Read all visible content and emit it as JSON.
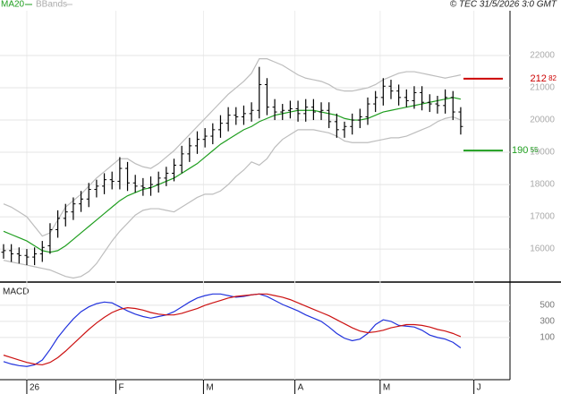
{
  "chart_data": [
    {
      "type": "ohlc",
      "source": "© TEC 31/5/2026 3:0 GMT",
      "categories": [
        null,
        null,
        null,
        null,
        null,
        null,
        null,
        null,
        null,
        null,
        null,
        null,
        null,
        null,
        null,
        null,
        null,
        null,
        null,
        null,
        null,
        null,
        null,
        null,
        null,
        null,
        null,
        null,
        null,
        null,
        null,
        null,
        null,
        null,
        null,
        null,
        null,
        null,
        null,
        null,
        null,
        null,
        null,
        null,
        null,
        null,
        null,
        null,
        null,
        null,
        null,
        null,
        null,
        null,
        null,
        null,
        null,
        null,
        null,
        null
      ],
      "ohlc": {
        "color": "#000000",
        "open": [
          15900,
          15950,
          15850,
          15800,
          15750,
          15850,
          16100,
          16600,
          16950,
          17150,
          17400,
          17550,
          17850,
          17950,
          18150,
          18100,
          18500,
          18050,
          17950,
          17900,
          18000,
          18200,
          18350,
          18600,
          18950,
          19200,
          19400,
          19500,
          19700,
          19900,
          20150,
          20100,
          20200,
          20300,
          21100,
          20400,
          20250,
          20300,
          20350,
          20200,
          20400,
          20250,
          20300,
          19950,
          19700,
          19800,
          20000,
          20100,
          20500,
          20700,
          21050,
          20900,
          20700,
          20600,
          20850,
          20550,
          20500,
          20450,
          20700,
          20250
        ],
        "high": [
          16150,
          16150,
          16050,
          16000,
          16050,
          16250,
          16800,
          17200,
          17400,
          17600,
          17800,
          18050,
          18150,
          18350,
          18400,
          18850,
          18700,
          18300,
          18200,
          18250,
          18400,
          18550,
          18800,
          19200,
          19450,
          19650,
          19750,
          19900,
          20150,
          20400,
          20400,
          20450,
          20550,
          21650,
          21300,
          20650,
          20500,
          20600,
          20600,
          20650,
          20650,
          20550,
          20550,
          20200,
          19950,
          20200,
          20350,
          20700,
          20900,
          21300,
          21250,
          21100,
          20950,
          21050,
          21050,
          20800,
          20750,
          20950,
          20900,
          20400
        ],
        "low": [
          15700,
          15600,
          15550,
          15500,
          15500,
          15600,
          15850,
          16350,
          16700,
          16900,
          17150,
          17300,
          17600,
          17700,
          17850,
          17850,
          17800,
          17750,
          17650,
          17650,
          17750,
          17950,
          18100,
          18350,
          18700,
          18950,
          19150,
          19250,
          19450,
          19650,
          19850,
          19850,
          19950,
          20050,
          20150,
          20000,
          20000,
          20050,
          19950,
          19950,
          20000,
          20000,
          19750,
          19450,
          19450,
          19550,
          19750,
          19850,
          20250,
          20450,
          20650,
          20450,
          20400,
          20350,
          20300,
          20250,
          20200,
          20200,
          20000,
          19550
        ],
        "close": [
          15950,
          15850,
          15800,
          15750,
          15850,
          16050,
          16600,
          16950,
          17150,
          17400,
          17550,
          17850,
          17950,
          18150,
          18100,
          18500,
          18050,
          17950,
          17900,
          18000,
          18200,
          18350,
          18600,
          18950,
          19200,
          19400,
          19500,
          19700,
          19900,
          20150,
          20100,
          20200,
          20300,
          21100,
          20400,
          20250,
          20300,
          20350,
          20200,
          20400,
          20250,
          20300,
          19950,
          19700,
          19800,
          20000,
          20100,
          20500,
          20700,
          21050,
          20900,
          20700,
          20600,
          20850,
          20550,
          20500,
          20450,
          20700,
          20250,
          19800
        ]
      },
      "series": [
        {
          "name": "MA20",
          "color": "#1f9e1f",
          "values": [
            16550,
            16450,
            16350,
            16250,
            16100,
            15950,
            15900,
            15950,
            16100,
            16300,
            16500,
            16700,
            16900,
            17100,
            17300,
            17500,
            17650,
            17750,
            17850,
            17900,
            18000,
            18100,
            18200,
            18350,
            18500,
            18650,
            18850,
            19050,
            19250,
            19400,
            19550,
            19700,
            19800,
            19950,
            20050,
            20150,
            20200,
            20250,
            20300,
            20300,
            20300,
            20250,
            20200,
            20150,
            20050,
            20000,
            20000,
            20050,
            20150,
            20250,
            20300,
            20350,
            20400,
            20450,
            20500,
            20550,
            20600,
            20650,
            20700,
            20650
          ]
        },
        {
          "name": "BBands",
          "color": "#bdbdbd",
          "upper": [
            17400,
            17300,
            17150,
            17000,
            16700,
            16400,
            16500,
            16900,
            17300,
            17500,
            17700,
            17950,
            18200,
            18400,
            18600,
            18800,
            18800,
            18650,
            18550,
            18500,
            18650,
            18850,
            19050,
            19300,
            19550,
            19800,
            20050,
            20300,
            20550,
            20800,
            21000,
            21200,
            21450,
            21900,
            21900,
            21800,
            21700,
            21550,
            21400,
            21300,
            21250,
            21200,
            21100,
            20950,
            20900,
            20900,
            20950,
            21000,
            21100,
            21250,
            21350,
            21450,
            21500,
            21500,
            21450,
            21400,
            21350,
            21300,
            21350,
            21400
          ],
          "lower": [
            15650,
            15600,
            15550,
            15500,
            15450,
            15400,
            15350,
            15250,
            15150,
            15100,
            15150,
            15300,
            15550,
            15900,
            16250,
            16550,
            16800,
            17050,
            17200,
            17250,
            17250,
            17200,
            17150,
            17300,
            17450,
            17600,
            17700,
            17700,
            17800,
            18000,
            18250,
            18450,
            18700,
            18600,
            18800,
            19150,
            19400,
            19550,
            19700,
            19700,
            19700,
            19650,
            19600,
            19500,
            19350,
            19300,
            19300,
            19300,
            19350,
            19400,
            19450,
            19450,
            19500,
            19600,
            19700,
            19800,
            19950,
            20050,
            20100,
            20000
          ]
        }
      ],
      "annotations": [
        {
          "value": 21282,
          "label": "212 82",
          "color": "#cc0000"
        },
        {
          "value": 19055,
          "label": "190 55",
          "color": "#1f9e1f"
        }
      ],
      "xlim": [
        -0.46,
        65.36
      ],
      "ylim": [
        15030,
        23390
      ],
      "yticks": [
        16000,
        17000,
        18000,
        19000,
        20000,
        21000,
        22000
      ],
      "grid": true
    },
    {
      "type": "line",
      "title": "MACD",
      "series": [
        {
          "color": "#2233dd",
          "values": [
            -200,
            -230,
            -250,
            -260,
            -240,
            -180,
            -50,
            100,
            220,
            330,
            420,
            480,
            520,
            540,
            530,
            480,
            430,
            390,
            360,
            340,
            360,
            380,
            420,
            480,
            540,
            590,
            620,
            640,
            640,
            620,
            600,
            610,
            630,
            640,
            610,
            560,
            510,
            470,
            430,
            380,
            340,
            300,
            230,
            150,
            90,
            60,
            80,
            150,
            260,
            320,
            300,
            250,
            240,
            230,
            190,
            130,
            100,
            80,
            40,
            -30
          ]
        },
        {
          "color": "#cc1111",
          "values": [
            -120,
            -150,
            -180,
            -210,
            -230,
            -240,
            -210,
            -150,
            -70,
            20,
            110,
            200,
            280,
            350,
            410,
            450,
            470,
            460,
            440,
            410,
            390,
            380,
            380,
            400,
            430,
            460,
            500,
            530,
            560,
            590,
            610,
            620,
            630,
            640,
            640,
            620,
            600,
            570,
            530,
            490,
            450,
            410,
            370,
            320,
            270,
            220,
            180,
            160,
            170,
            190,
            220,
            240,
            260,
            260,
            250,
            230,
            200,
            180,
            150,
            110
          ]
        }
      ],
      "xlim": [
        -0.46,
        65.36
      ],
      "xticks": [
        {
          "value": 3,
          "label": "26"
        },
        {
          "value": 14.5,
          "label": "F"
        },
        {
          "value": 25.8,
          "label": "M"
        },
        {
          "value": 37.6,
          "label": "A"
        },
        {
          "value": 48.6,
          "label": "M"
        },
        {
          "value": 60.7,
          "label": "J"
        }
      ],
      "ylim": [
        -380,
        755
      ],
      "yticks": [
        100,
        300,
        500
      ],
      "grid": true
    }
  ]
}
